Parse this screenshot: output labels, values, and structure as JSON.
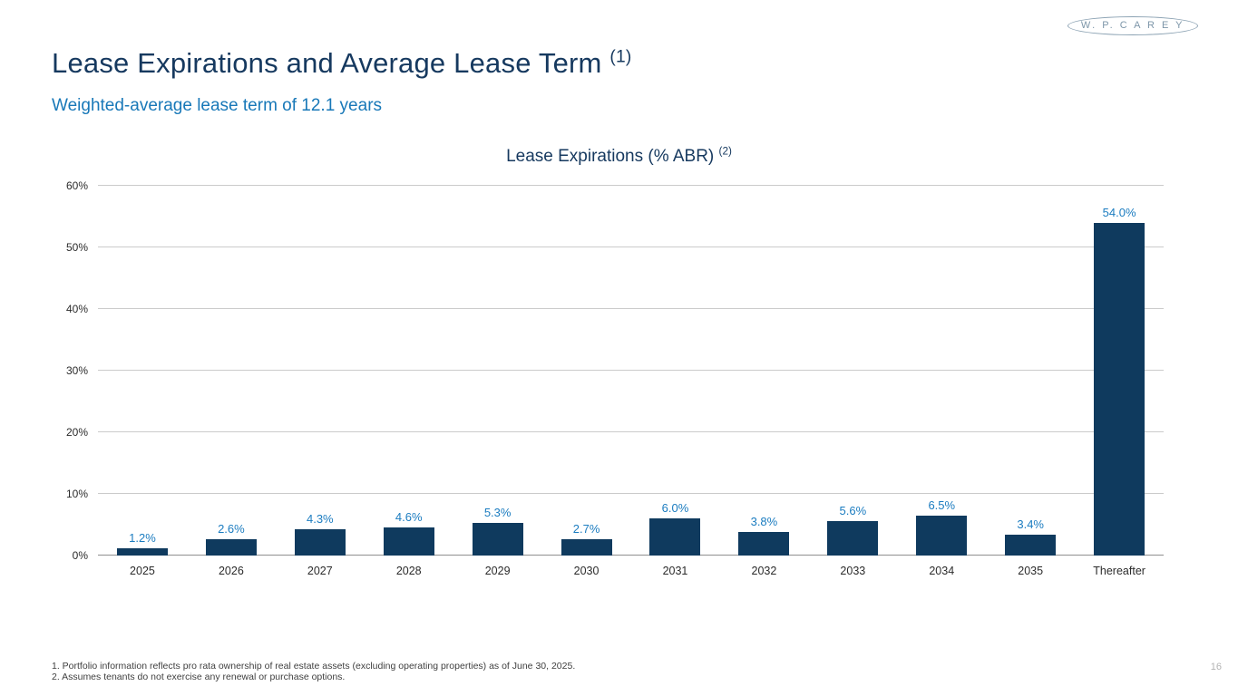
{
  "logo": {
    "text": "W. P. C A R E Y"
  },
  "header": {
    "title": "Lease Expirations and Average Lease Term",
    "title_superscript": "(1)",
    "subtitle": "Weighted-average lease term of 12.1 years"
  },
  "chart": {
    "title": "Lease Expirations (% ABR)",
    "title_superscript": "(2)"
  },
  "chart_data": {
    "type": "bar",
    "title": "Lease Expirations (% ABR) (2)",
    "categories": [
      "2025",
      "2026",
      "2027",
      "2028",
      "2029",
      "2030",
      "2031",
      "2032",
      "2033",
      "2034",
      "2035",
      "Thereafter"
    ],
    "values": [
      1.2,
      2.6,
      4.3,
      4.6,
      5.3,
      2.7,
      6.0,
      3.8,
      5.6,
      6.5,
      3.4,
      54.0
    ],
    "data_labels": [
      "1.2%",
      "2.6%",
      "4.3%",
      "4.6%",
      "5.3%",
      "2.7%",
      "6.0%",
      "3.8%",
      "5.6%",
      "6.5%",
      "3.4%",
      "54.0%"
    ],
    "xlabel": "",
    "ylabel": "",
    "ylim": [
      0,
      60
    ],
    "yticks": [
      "0%",
      "10%",
      "20%",
      "30%",
      "40%",
      "50%",
      "60%"
    ],
    "grid": true,
    "legend": false,
    "bar_color": "#0f3a5e",
    "label_color": "#1b7cc0"
  },
  "footnotes": [
    "1. Portfolio information reflects pro rata ownership of real estate assets (excluding operating properties) as of June 30, 2025.",
    "2. Assumes tenants do not exercise any renewal or purchase options."
  ],
  "page_number": "16"
}
